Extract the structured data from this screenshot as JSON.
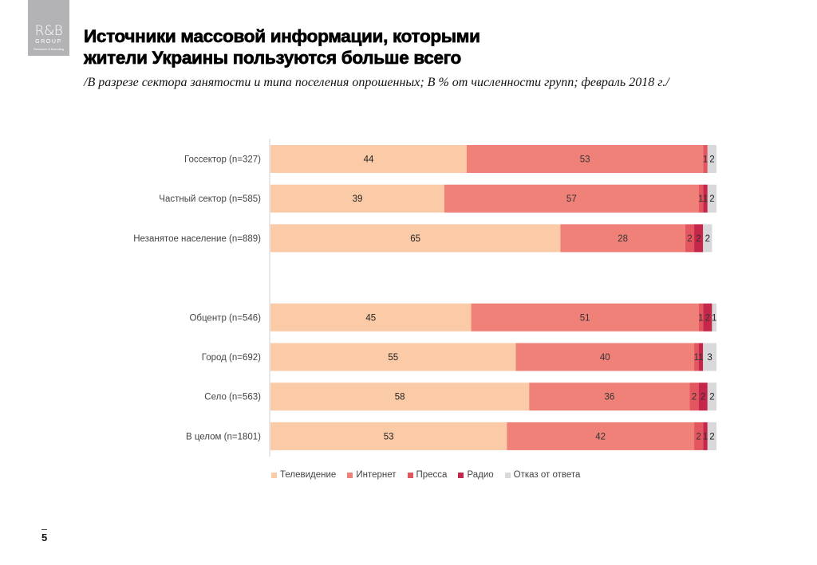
{
  "logo": {
    "brand": "R&B",
    "group": "GROUP",
    "tagline": "Research & Branding"
  },
  "header": {
    "title_line1": "Источники массовой информации, которыми",
    "title_line2": "жители Украины пользуются больше всего",
    "subtitle": "/В разрезе сектора занятости и типа поселения опрошенных; В % от численности групп; февраль 2018 г./"
  },
  "page_number": "5",
  "chart_data": {
    "type": "bar",
    "orientation": "horizontal",
    "stacked": true,
    "title": "Источники массовой информации, которыми жители Украины пользуются больше всего",
    "xlabel": "",
    "ylabel": "",
    "xlim": [
      0,
      100
    ],
    "grid": false,
    "legend_position": "bottom",
    "categories": [
      "Госсектор (n=327)",
      "Частный сектор (n=585)",
      "Незанятое население (n=889)",
      "",
      "Обцентр (n=546)",
      "Город (n=692)",
      "Село (n=563)",
      "В целом (n=1801)"
    ],
    "series": [
      {
        "name": "Телевидение",
        "color": "#FBCBA8",
        "values": [
          44,
          39,
          65,
          null,
          45,
          55,
          58,
          53
        ]
      },
      {
        "name": "Интернет",
        "color": "#F08179",
        "values": [
          53,
          57,
          28,
          null,
          51,
          40,
          36,
          42
        ]
      },
      {
        "name": "Пресса",
        "color": "#E4565F",
        "values": [
          1,
          1,
          2,
          null,
          1,
          1,
          2,
          2
        ]
      },
      {
        "name": "Радио",
        "color": "#C4274A",
        "values": [
          0,
          1,
          2,
          null,
          2,
          1,
          2,
          1
        ]
      },
      {
        "name": "Отказ от ответа",
        "color": "#D9D9DB",
        "values": [
          2,
          2,
          2,
          null,
          1,
          3,
          2,
          2
        ]
      }
    ]
  }
}
